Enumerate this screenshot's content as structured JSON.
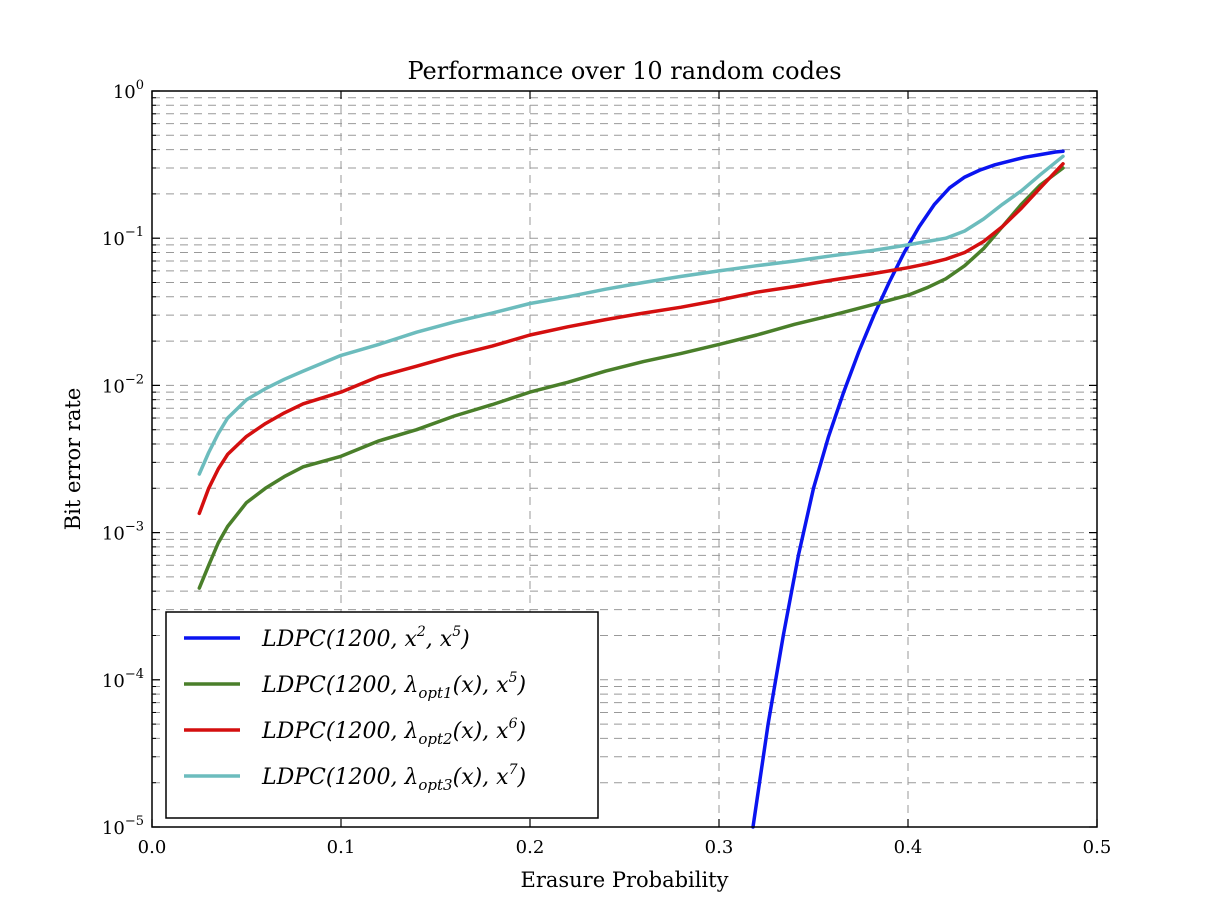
{
  "chart_data": {
    "type": "line",
    "title": "Performance over 10 random codes",
    "xlabel": "Erasure Probability",
    "ylabel": "Bit error rate",
    "xlim": [
      0.0,
      0.5
    ],
    "ylim": [
      1e-05,
      1
    ],
    "yscale": "log",
    "grid": true,
    "legend_position": "lower-left",
    "x_ticks": [
      {
        "value": 0.0,
        "label": "0.0"
      },
      {
        "value": 0.1,
        "label": "0.1"
      },
      {
        "value": 0.2,
        "label": "0.2"
      },
      {
        "value": 0.3,
        "label": "0.3"
      },
      {
        "value": 0.4,
        "label": "0.4"
      },
      {
        "value": 0.5,
        "label": "0.5"
      }
    ],
    "y_ticks": [
      {
        "value": 1.0,
        "base": "10",
        "exp": "0"
      },
      {
        "value": 0.1,
        "base": "10",
        "exp": "−1"
      },
      {
        "value": 0.01,
        "base": "10",
        "exp": "−2"
      },
      {
        "value": 0.001,
        "base": "10",
        "exp": "−3"
      },
      {
        "value": 0.0001,
        "base": "10",
        "exp": "−4"
      },
      {
        "value": 1e-05,
        "base": "10",
        "exp": "−5"
      }
    ],
    "series": [
      {
        "name": "LDPC(1200, x^2, x^5)",
        "legend_parts": [
          [
            "LDPC(1200, x",
            ""
          ],
          [
            "2",
            "sup"
          ],
          [
            ", x",
            ""
          ],
          [
            "5",
            "sup"
          ],
          [
            ")",
            ""
          ]
        ],
        "color": "#0a14f0",
        "x": [
          0.318,
          0.326,
          0.334,
          0.342,
          0.35,
          0.358,
          0.366,
          0.374,
          0.382,
          0.39,
          0.398,
          0.406,
          0.414,
          0.422,
          0.43,
          0.438,
          0.446,
          0.454,
          0.462,
          0.47,
          0.478,
          0.482
        ],
        "y": [
          1e-05,
          5e-05,
          0.0002,
          0.0007,
          0.002,
          0.0045,
          0.009,
          0.017,
          0.03,
          0.05,
          0.08,
          0.12,
          0.17,
          0.22,
          0.26,
          0.29,
          0.315,
          0.335,
          0.355,
          0.37,
          0.385,
          0.39
        ]
      },
      {
        "name": "LDPC(1200, λ_opt1(x), x^5)",
        "legend_parts": [
          [
            "LDPC(1200, λ",
            ""
          ],
          [
            "opt1",
            "sub"
          ],
          [
            "(x), x",
            ""
          ],
          [
            "5",
            "sup"
          ],
          [
            ")",
            ""
          ]
        ],
        "color": "#4a7f2a",
        "x": [
          0.025,
          0.03,
          0.035,
          0.04,
          0.05,
          0.06,
          0.07,
          0.08,
          0.1,
          0.12,
          0.14,
          0.16,
          0.18,
          0.2,
          0.22,
          0.24,
          0.26,
          0.28,
          0.3,
          0.32,
          0.34,
          0.36,
          0.38,
          0.4,
          0.41,
          0.42,
          0.43,
          0.44,
          0.45,
          0.46,
          0.47,
          0.482
        ],
        "y": [
          0.00042,
          0.0006,
          0.00085,
          0.0011,
          0.0016,
          0.002,
          0.0024,
          0.0028,
          0.0033,
          0.0042,
          0.005,
          0.0062,
          0.0074,
          0.009,
          0.0105,
          0.0125,
          0.0145,
          0.0165,
          0.019,
          0.022,
          0.026,
          0.03,
          0.035,
          0.041,
          0.046,
          0.053,
          0.065,
          0.085,
          0.12,
          0.17,
          0.23,
          0.3
        ]
      },
      {
        "name": "LDPC(1200, λ_opt2(x), x^6)",
        "legend_parts": [
          [
            "LDPC(1200, λ",
            ""
          ],
          [
            "opt2",
            "sub"
          ],
          [
            "(x), x",
            ""
          ],
          [
            "6",
            "sup"
          ],
          [
            ")",
            ""
          ]
        ],
        "color": "#d40f0f",
        "x": [
          0.025,
          0.03,
          0.035,
          0.04,
          0.05,
          0.06,
          0.07,
          0.08,
          0.1,
          0.12,
          0.14,
          0.16,
          0.18,
          0.2,
          0.22,
          0.24,
          0.26,
          0.28,
          0.3,
          0.32,
          0.34,
          0.36,
          0.38,
          0.4,
          0.41,
          0.42,
          0.43,
          0.44,
          0.45,
          0.46,
          0.47,
          0.482
        ],
        "y": [
          0.00135,
          0.002,
          0.0027,
          0.0034,
          0.0045,
          0.0055,
          0.0065,
          0.0075,
          0.009,
          0.0115,
          0.0135,
          0.016,
          0.0185,
          0.022,
          0.025,
          0.028,
          0.031,
          0.034,
          0.038,
          0.043,
          0.047,
          0.052,
          0.057,
          0.063,
          0.067,
          0.072,
          0.08,
          0.095,
          0.12,
          0.16,
          0.22,
          0.32
        ]
      },
      {
        "name": "LDPC(1200, λ_opt3(x), x^7)",
        "legend_parts": [
          [
            "LDPC(1200, λ",
            ""
          ],
          [
            "opt3",
            "sub"
          ],
          [
            "(x), x",
            ""
          ],
          [
            "7",
            "sup"
          ],
          [
            ")",
            ""
          ]
        ],
        "color": "#6cbcbd",
        "x": [
          0.025,
          0.03,
          0.035,
          0.04,
          0.05,
          0.06,
          0.07,
          0.08,
          0.1,
          0.12,
          0.14,
          0.16,
          0.18,
          0.2,
          0.22,
          0.24,
          0.26,
          0.28,
          0.3,
          0.32,
          0.34,
          0.36,
          0.38,
          0.4,
          0.41,
          0.42,
          0.43,
          0.44,
          0.45,
          0.46,
          0.47,
          0.482
        ],
        "y": [
          0.0025,
          0.0035,
          0.0047,
          0.006,
          0.008,
          0.0095,
          0.011,
          0.0125,
          0.016,
          0.019,
          0.023,
          0.027,
          0.031,
          0.036,
          0.04,
          0.045,
          0.05,
          0.055,
          0.06,
          0.065,
          0.07,
          0.076,
          0.082,
          0.09,
          0.095,
          0.1,
          0.112,
          0.135,
          0.17,
          0.21,
          0.27,
          0.36
        ]
      }
    ]
  }
}
